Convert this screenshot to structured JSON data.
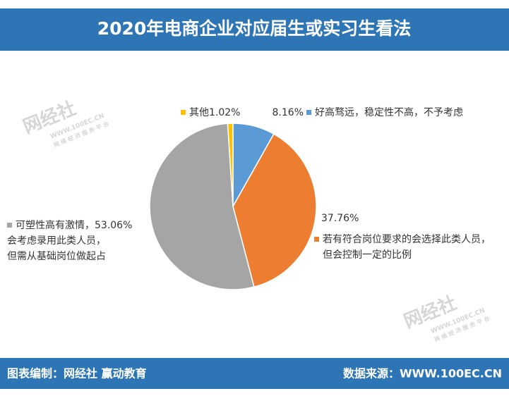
{
  "header": {
    "title": "2020年电商企业对应届生或实习生看法"
  },
  "chart_data": {
    "type": "pie",
    "categories": [
      [
        "好高骛远，稳定性不高，不予考虑"
      ],
      [
        "若有符合岗位要求的会选择此类人员，",
        "但会控制一定的比例"
      ],
      [
        "可塑性高有激情，",
        "会考虑录用此类人员，",
        "但需从基础岗位做起占"
      ],
      [
        "其他"
      ]
    ],
    "values": [
      8.16,
      37.76,
      53.06,
      1.02
    ],
    "value_labels": [
      "8.16%",
      "37.76%",
      "53.06%",
      "1.02%"
    ],
    "colors": [
      "#5b9bd5",
      "#ed7d31",
      "#a5a5a5",
      "#ffc000"
    ]
  },
  "watermark": {
    "brand": "网经社",
    "url": "WWW.100EC.CN",
    "slogan": "网 络 经 济 服 务 平 台"
  },
  "footer": {
    "left": "图表编制：网经社  赢动教育",
    "right": "数据来源：WWW.100EC.CN"
  }
}
